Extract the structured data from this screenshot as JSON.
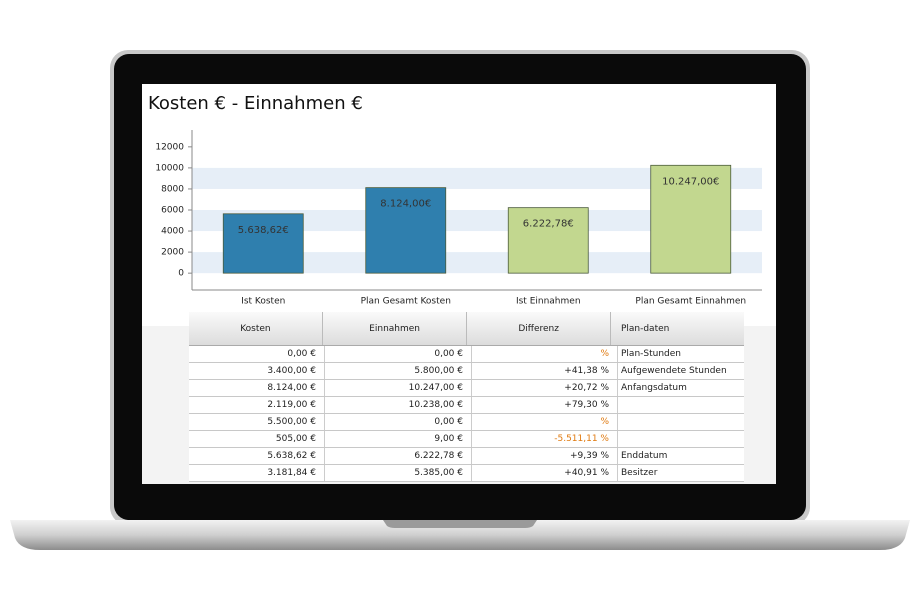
{
  "chart_data": {
    "type": "bar",
    "title": "Kosten € - Einnahmen €",
    "categories": [
      "Ist Kosten",
      "Plan Gesamt Kosten",
      "Ist Einnahmen",
      "Plan Gesamt Einnahmen"
    ],
    "values": [
      5638.62,
      8124.0,
      6222.78,
      10247.0
    ],
    "value_labels": [
      "5.638,62€",
      "8.124,00€",
      "6.222,78€",
      "10.247,00€"
    ],
    "colors": [
      "#2f7fae",
      "#2f7fae",
      "#c2d78f",
      "#c2d78f"
    ],
    "ylim": [
      -1600,
      13600
    ],
    "yticks": [
      0,
      2000,
      4000,
      6000,
      8000,
      10000,
      12000
    ],
    "grid": true
  },
  "table": {
    "header": [
      "Kosten",
      "Einnahmen",
      "Differenz",
      "Plan-daten"
    ],
    "rows": [
      [
        "0,00 €",
        "0,00 €",
        "%",
        "Plan-Stunden"
      ],
      [
        "3.400,00 €",
        "5.800,00 €",
        "+41,38 %",
        "Aufgewendete Stunden"
      ],
      [
        "8.124,00 €",
        "10.247,00 €",
        "+20,72 %",
        "Anfangsdatum"
      ],
      [
        "2.119,00 €",
        "10.238,00 €",
        "+79,30 %"
      ],
      [
        "5.500,00 €",
        "0,00 €",
        "%"
      ],
      [
        "505,00 €",
        "9,00 €",
        "-5.511,11 %"
      ],
      [
        "5.638,62 €",
        "6.222,78 €",
        "+9,39 %",
        "Enddatum"
      ],
      [
        "3.181,84 €",
        "5.385,00 €",
        "+40,91 %",
        "Besitzer"
      ]
    ]
  }
}
